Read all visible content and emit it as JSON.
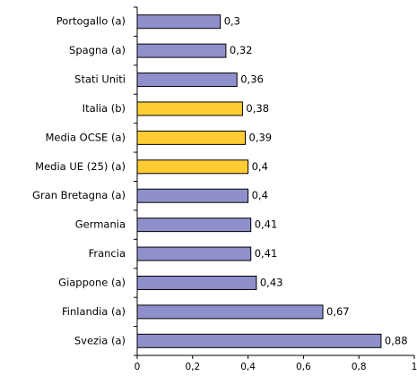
{
  "chart_data": {
    "type": "bar",
    "orientation": "horizontal",
    "categories": [
      "Portogallo (a)",
      "Spagna (a)",
      "Stati Uniti",
      "Italia (b)",
      "Media OCSE (a)",
      "Media UE (25) (a)",
      "Gran Bretagna (a)",
      "Germania",
      "Francia",
      "Giappone (a)",
      "Finlandia (a)",
      "Svezia (a)"
    ],
    "values": [
      0.3,
      0.32,
      0.36,
      0.38,
      0.39,
      0.4,
      0.4,
      0.41,
      0.41,
      0.43,
      0.67,
      0.88
    ],
    "value_labels": [
      "0,3",
      "0,32",
      "0,36",
      "0,38",
      "0,39",
      "0,4",
      "0,4",
      "0,41",
      "0,41",
      "0,43",
      "0,67",
      "0,88"
    ],
    "colors": [
      "#8f8fcc",
      "#8f8fcc",
      "#8f8fcc",
      "#ffcc33",
      "#ffcc33",
      "#ffcc33",
      "#8f8fcc",
      "#8f8fcc",
      "#8f8fcc",
      "#8f8fcc",
      "#8f8fcc",
      "#8f8fcc"
    ],
    "xlim": [
      0,
      1
    ],
    "xticks": [
      0,
      {
        "value": 0.2,
        "label": "0,2"
      },
      {
        "value": 0.4,
        "label": "0,4"
      },
      {
        "value": 0.6,
        "label": "0,6"
      },
      {
        "value": 0.8,
        "label": "0,8"
      },
      1
    ]
  }
}
